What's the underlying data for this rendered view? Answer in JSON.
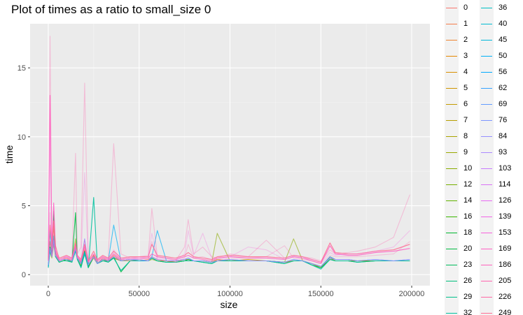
{
  "chart_data": {
    "type": "line",
    "title": "Plot of times as a ratio to small_size 0",
    "xlabel": "size",
    "ylabel": "time",
    "xlim": [
      -10000,
      210000
    ],
    "ylim": [
      -0.8,
      18.2
    ],
    "x_ticks": [
      0,
      50000,
      100000,
      150000,
      200000
    ],
    "x_tick_labels": [
      "0",
      "50000",
      "100000",
      "150000",
      "200000"
    ],
    "y_ticks": [
      0,
      5,
      10,
      15
    ],
    "y_tick_labels": [
      "0",
      "5",
      "10",
      "15"
    ],
    "grid": true,
    "legend_position": "right",
    "legend_entries": [
      "0",
      "1",
      "2",
      "3",
      "4",
      "5",
      "6",
      "7",
      "8",
      "9",
      "10",
      "12",
      "14",
      "16",
      "18",
      "20",
      "23",
      "26",
      "29",
      "32",
      "36",
      "40",
      "45",
      "50",
      "56",
      "62",
      "69",
      "76",
      "84",
      "93",
      "103",
      "114",
      "126",
      "139",
      "153",
      "169",
      "186",
      "205",
      "226",
      "249"
    ],
    "legend_colors": [
      "#f8766d",
      "#f47d4a",
      "#ee8532",
      "#e58700",
      "#d98f00",
      "#d09400",
      "#c49a00",
      "#b79f00",
      "#a9a400",
      "#99a800",
      "#8aab00",
      "#77af00",
      "#61b200",
      "#39b600",
      "#00b72f",
      "#00ba42",
      "#00bc5b",
      "#00bf7d",
      "#00c08b",
      "#00c19f",
      "#00bfc4",
      "#00bbd1",
      "#00b6da",
      "#00b0f6",
      "#00a9ff",
      "#35a2ff",
      "#619cff",
      "#7e96ff",
      "#9590ff",
      "#ab89ff",
      "#c77cff",
      "#d971f6",
      "#e76bf3",
      "#f265e6",
      "#f962dd",
      "#ff61c3",
      "#ff62bc",
      "#ff64b0",
      "#ff67a4",
      "#ff6c91"
    ],
    "x_samples": [
      0,
      1000,
      2000,
      3000,
      4000,
      5000,
      6000,
      8000,
      10000,
      13000,
      15000,
      16000,
      18000,
      20000,
      22000,
      25000,
      27000,
      30000,
      33000,
      36000,
      40000,
      45000,
      50000,
      55000,
      57000,
      60000,
      65000,
      70000,
      75000,
      77000,
      80000,
      85000,
      90000,
      93000,
      100000,
      110000,
      120000,
      130000,
      135000,
      140000,
      145000,
      150000,
      155000,
      158000,
      165000,
      170000,
      180000,
      190000,
      199000
    ],
    "series": [
      {
        "values": [
          1.0,
          2.4,
          1.5,
          3.5,
          1.6,
          1.3,
          1.0,
          1.1,
          1.2,
          1.0,
          2.0,
          1.2,
          0.9,
          1.8,
          0.7,
          1.3,
          0.8,
          1.2,
          1.0,
          1.4,
          1.0,
          1.1,
          1.0,
          1.1,
          1.3,
          1.1,
          1.0,
          1.0,
          1.1,
          1.1,
          1.0,
          1.0,
          0.9,
          1.0,
          1.0,
          1.0,
          1.0,
          0.9,
          1.0,
          1.0,
          0.8,
          0.5,
          1.3,
          1.1,
          1.1,
          1.0,
          1.0,
          1.0,
          1.0
        ],
        "color": "#f8766d",
        "opacity": 0.9
      },
      {
        "values": [
          1.0,
          1.8,
          1.3,
          2.6,
          1.4,
          1.2,
          0.9,
          1.0,
          1.1,
          1.0,
          1.8,
          1.2,
          0.8,
          1.6,
          0.6,
          1.4,
          0.8,
          1.1,
          1.0,
          1.2,
          1.0,
          1.1,
          1.0,
          1.0,
          1.2,
          1.0,
          1.0,
          0.9,
          1.0,
          1.1,
          1.0,
          1.0,
          0.9,
          1.1,
          1.0,
          1.1,
          1.0,
          0.9,
          1.0,
          1.0,
          0.8,
          0.6,
          1.2,
          1.0,
          1.0,
          1.0,
          1.0,
          1.0,
          1.0
        ],
        "color": "#d09400",
        "opacity": 0.9
      },
      {
        "values": [
          0.8,
          1.6,
          1.2,
          2.2,
          1.3,
          1.1,
          0.9,
          1.0,
          1.0,
          1.0,
          2.6,
          1.1,
          0.7,
          1.5,
          0.6,
          1.2,
          0.8,
          1.0,
          1.0,
          1.2,
          1.0,
          1.0,
          1.0,
          1.0,
          1.1,
          1.0,
          0.9,
          1.0,
          1.0,
          1.1,
          1.0,
          1.0,
          0.9,
          3.0,
          1.0,
          1.0,
          1.0,
          0.9,
          2.6,
          1.0,
          0.8,
          0.5,
          1.2,
          1.0,
          1.0,
          1.0,
          1.0,
          1.0,
          1.0
        ],
        "color": "#8aab00",
        "opacity": 0.6
      },
      {
        "values": [
          0.6,
          2.0,
          1.4,
          4.6,
          1.4,
          1.2,
          0.9,
          1.0,
          1.1,
          0.9,
          4.5,
          1.1,
          0.6,
          1.7,
          0.5,
          1.3,
          0.8,
          1.1,
          0.9,
          1.3,
          0.2,
          1.0,
          1.0,
          1.0,
          1.2,
          1.0,
          0.9,
          0.9,
          1.0,
          1.1,
          1.0,
          0.9,
          0.8,
          1.0,
          1.0,
          1.0,
          1.0,
          0.8,
          1.0,
          1.0,
          0.7,
          0.5,
          1.1,
          1.0,
          1.0,
          0.9,
          1.0,
          1.0,
          1.0
        ],
        "color": "#00ba42",
        "opacity": 0.9
      },
      {
        "values": [
          0.5,
          1.7,
          1.3,
          2.4,
          1.3,
          1.1,
          0.9,
          1.0,
          1.0,
          0.9,
          1.7,
          1.1,
          0.5,
          1.5,
          0.5,
          5.6,
          0.8,
          1.0,
          0.9,
          1.2,
          0.3,
          1.0,
          1.0,
          1.0,
          1.2,
          1.0,
          0.9,
          0.9,
          1.0,
          1.0,
          1.0,
          0.9,
          0.8,
          1.0,
          1.0,
          1.0,
          1.0,
          0.8,
          1.0,
          1.0,
          0.7,
          0.4,
          1.1,
          1.0,
          1.0,
          0.9,
          1.0,
          1.0,
          1.0
        ],
        "color": "#00c19f",
        "opacity": 0.9
      },
      {
        "values": [
          0.6,
          3.2,
          1.4,
          2.8,
          1.4,
          1.2,
          1.0,
          1.1,
          1.1,
          1.0,
          1.8,
          1.2,
          0.8,
          1.6,
          0.7,
          1.3,
          0.8,
          1.1,
          1.0,
          3.6,
          1.0,
          1.1,
          1.0,
          1.0,
          1.3,
          3.2,
          1.0,
          1.0,
          1.1,
          1.2,
          1.0,
          1.0,
          0.9,
          1.0,
          1.1,
          1.0,
          1.0,
          0.9,
          1.1,
          1.0,
          0.8,
          0.6,
          1.3,
          1.1,
          1.1,
          1.0,
          1.1,
          1.0,
          1.1
        ],
        "color": "#00b0f6",
        "opacity": 0.7
      },
      {
        "values": [
          0.7,
          1.9,
          1.3,
          2.5,
          1.4,
          1.2,
          1.0,
          1.1,
          1.1,
          1.0,
          1.9,
          1.2,
          0.8,
          2.6,
          0.7,
          1.3,
          0.8,
          1.1,
          1.0,
          1.3,
          1.0,
          1.1,
          1.1,
          1.0,
          1.3,
          1.1,
          1.0,
          1.0,
          1.1,
          1.2,
          1.0,
          1.0,
          0.9,
          1.0,
          1.1,
          1.0,
          1.0,
          0.9,
          1.1,
          1.0,
          0.8,
          0.6,
          1.2,
          1.1,
          1.1,
          1.0,
          1.1,
          1.0,
          1.1
        ],
        "color": "#9590ff",
        "opacity": 0.9
      },
      {
        "values": [
          1.0,
          13.0,
          1.8,
          5.2,
          1.8,
          1.4,
          1.1,
          1.2,
          1.3,
          1.1,
          2.2,
          1.3,
          1.0,
          2.0,
          0.9,
          1.5,
          1.0,
          1.3,
          1.1,
          1.5,
          1.1,
          1.2,
          1.2,
          1.2,
          1.5,
          1.3,
          1.2,
          1.1,
          1.3,
          1.4,
          1.2,
          1.1,
          1.0,
          1.2,
          1.3,
          1.2,
          1.2,
          1.1,
          1.3,
          1.2,
          1.0,
          0.8,
          2.1,
          1.5,
          1.4,
          1.4,
          1.6,
          1.7,
          1.9
        ],
        "color": "#ff61c3",
        "opacity": 0.9
      },
      {
        "values": [
          1.2,
          3.6,
          2.0,
          3.9,
          2.1,
          1.6,
          1.2,
          1.3,
          1.4,
          1.2,
          2.3,
          1.4,
          1.1,
          2.2,
          1.0,
          1.7,
          1.1,
          1.4,
          1.2,
          1.7,
          1.2,
          1.3,
          1.3,
          1.3,
          2.2,
          1.4,
          1.3,
          1.2,
          1.4,
          1.6,
          1.3,
          1.2,
          1.1,
          1.3,
          1.4,
          1.3,
          1.3,
          1.2,
          1.4,
          1.3,
          1.1,
          0.9,
          2.3,
          1.6,
          1.5,
          1.5,
          1.7,
          1.8,
          2.2
        ],
        "color": "#ff6c91",
        "opacity": 0.9
      },
      {
        "values": [
          1.5,
          17.3,
          1.5,
          3.0,
          1.5,
          1.3,
          1.1,
          1.2,
          1.4,
          1.2,
          8.8,
          1.5,
          2.0,
          13.9,
          1.0,
          1.4,
          1.0,
          1.3,
          1.2,
          9.5,
          1.5,
          1.2,
          1.3,
          1.4,
          4.8,
          1.3,
          1.2,
          1.0,
          2.0,
          4.0,
          1.5,
          2.0,
          1.3,
          1.2,
          1.5,
          1.3,
          2.5,
          1.2,
          1.4,
          1.3,
          1.2,
          1.0,
          1.8,
          1.5,
          1.6,
          1.7,
          2.0,
          2.7,
          5.8
        ],
        "color": "#ff64b0",
        "opacity": 0.35
      },
      {
        "values": [
          1.3,
          10.0,
          1.4,
          2.6,
          1.6,
          1.2,
          1.0,
          1.1,
          1.3,
          1.2,
          2.1,
          1.3,
          1.2,
          7.4,
          1.0,
          1.3,
          1.0,
          1.2,
          1.1,
          1.8,
          1.2,
          1.1,
          1.2,
          1.3,
          3.0,
          1.2,
          1.1,
          1.0,
          1.5,
          3.2,
          1.4,
          3.0,
          1.2,
          1.1,
          1.3,
          2.0,
          1.8,
          1.1,
          1.3,
          1.2,
          1.1,
          0.9,
          1.6,
          1.4,
          1.5,
          1.5,
          1.7,
          2.0,
          3.2
        ],
        "color": "#f962dd",
        "opacity": 0.3
      },
      {
        "values": [
          1.1,
          4.5,
          1.3,
          2.2,
          1.4,
          1.2,
          1.0,
          1.1,
          1.2,
          1.1,
          1.9,
          1.2,
          1.0,
          2.5,
          0.9,
          1.2,
          0.9,
          1.1,
          1.0,
          1.6,
          1.1,
          1.0,
          1.1,
          1.2,
          2.4,
          1.1,
          1.0,
          0.9,
          1.2,
          2.2,
          1.2,
          1.3,
          1.1,
          1.0,
          1.2,
          1.2,
          1.3,
          2.1,
          1.2,
          1.1,
          1.0,
          0.8,
          1.4,
          1.3,
          1.3,
          1.3,
          1.4,
          1.5,
          2.4
        ],
        "color": "#ff64b0",
        "opacity": 0.3
      }
    ]
  }
}
